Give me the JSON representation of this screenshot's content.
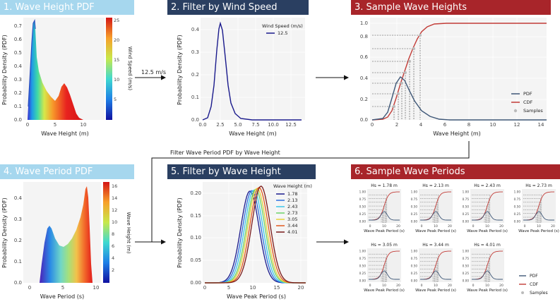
{
  "colors": {
    "light": "#a6d7ee",
    "navy": "#2a3f61",
    "red": "#a8252a",
    "pdf": "#3e5777",
    "cdf": "#c23b36"
  },
  "flow": {
    "wind_label": "12.5 m/s",
    "period_filter_label": "Filter Wave Period PDF by Wave Height"
  },
  "panels": {
    "p1": {
      "title": "1. Wave Height PDF",
      "xlabel": "Wave Height (m)",
      "ylabel": "Probability Density (PDF)",
      "xticks": [
        "0",
        "5",
        "10"
      ],
      "yticks": [
        "0.0",
        "0.1",
        "0.2",
        "0.3",
        "0.4",
        "0.5",
        "0.6",
        "0.7"
      ],
      "colorbar_label": "Wind Speed (m/s)",
      "colorbar_ticks": [
        "5",
        "10",
        "15",
        "20",
        "25"
      ]
    },
    "p2": {
      "title": "2. Filter by Wind Speed",
      "xlabel": "Wave Height (m)",
      "ylabel": "Probability Density (PDF)",
      "xticks": [
        "0.0",
        "2.5",
        "5.0",
        "7.5",
        "10.0",
        "12.5"
      ],
      "yticks": [
        "0.0",
        "0.1",
        "0.2",
        "0.3",
        "0.4"
      ],
      "legend_title": "Wind Speed (m/s)",
      "legend_item": "12.5"
    },
    "p3": {
      "title": "3. Sample Wave Heights",
      "xlabel": "Wave Height (m)",
      "xticks": [
        "0",
        "2",
        "4",
        "6",
        "8",
        "10",
        "12",
        "14"
      ],
      "yticks": [
        "0.0",
        "0.2",
        "0.4",
        "0.6",
        "0.8",
        "1.0"
      ],
      "legend": [
        "PDF",
        "CDF",
        "Samples"
      ]
    },
    "p4": {
      "title": "4. Wave Period PDF",
      "xlabel": "Wave Period (s)",
      "ylabel": "Probability Density (PDF)",
      "xticks": [
        "0",
        "5",
        "10"
      ],
      "yticks": [
        "0.0",
        "0.1",
        "0.2",
        "0.3",
        "0.4"
      ],
      "colorbar_label": "Wave Height (m)",
      "colorbar_ticks": [
        "2",
        "4",
        "6",
        "8",
        "10",
        "12",
        "14",
        "16"
      ]
    },
    "p5": {
      "title": "5. Filter by Wave Height",
      "xlabel": "Wave Peak Period (s)",
      "ylabel": "Probability Density (PDF)",
      "xticks": [
        "0",
        "5",
        "10",
        "15",
        "20"
      ],
      "yticks": [
        "0.00",
        "0.05",
        "0.10",
        "0.15",
        "0.20"
      ],
      "legend_title": "Wave Height (m)",
      "legend_items": [
        "1.78",
        "2.13",
        "2.43",
        "2.73",
        "3.05",
        "3.44",
        "4.01"
      ]
    },
    "p6": {
      "title": "6. Sample Wave Periods",
      "subplot_titles": [
        "Hs = 1.78 m",
        "Hs = 2.13 m",
        "Hs = 2.43 m",
        "Hs = 2.73 m",
        "Hs = 3.05 m",
        "Hs = 3.44 m",
        "Hs = 4.01 m"
      ],
      "subplot_xlabel": "Wave Peak Period (s)",
      "subplot_xticks": [
        "0",
        "10",
        "20"
      ],
      "subplot_yticks": [
        "0.00",
        "0.25",
        "0.50",
        "0.75",
        "1.00"
      ],
      "legend": [
        "PDF",
        "CDF",
        "Samples"
      ]
    }
  },
  "chart_data": [
    {
      "type": "area",
      "id": "wave_height_pdf",
      "title": "1. Wave Height PDF",
      "xlabel": "Wave Height (m)",
      "ylabel": "Probability Density (PDF)",
      "xlim": [
        0,
        14
      ],
      "ylim": [
        0,
        0.75
      ],
      "colorbar": {
        "label": "Wind Speed (m/s)",
        "range": [
          0,
          25
        ]
      },
      "series": [
        {
          "x": 1.2,
          "peak": 0.73
        },
        {
          "x": 6.3,
          "peak": 0.27
        }
      ]
    },
    {
      "type": "line",
      "id": "filter_by_wind_speed",
      "title": "2. Filter by Wind Speed",
      "xlabel": "Wave Height (m)",
      "ylabel": "Probability Density (PDF)",
      "xlim": [
        0,
        14
      ],
      "ylim": [
        0,
        0.45
      ],
      "series": [
        {
          "name": "12.5",
          "mode_x": 2.5,
          "peak": 0.43
        }
      ]
    },
    {
      "type": "line",
      "id": "sample_wave_heights",
      "title": "3. Sample Wave Heights",
      "xlabel": "Wave Height (m)",
      "xlim": [
        0,
        14
      ],
      "ylim": [
        0,
        1
      ],
      "series": [
        {
          "name": "PDF",
          "mode_x": 2.5,
          "peak": 0.42
        },
        {
          "name": "CDF"
        }
      ],
      "samples": [
        1.78,
        2.13,
        2.43,
        2.73,
        3.05,
        3.44,
        4.01
      ]
    },
    {
      "type": "area",
      "id": "wave_period_pdf",
      "title": "4. Wave Period PDF",
      "xlabel": "Wave Period (s)",
      "ylabel": "Probability Density (PDF)",
      "xlim": [
        0,
        14
      ],
      "ylim": [
        0,
        0.45
      ],
      "colorbar": {
        "label": "Wave Height (m)",
        "range": [
          0,
          16
        ]
      },
      "series": [
        {
          "x": 2.9,
          "peak": 0.27
        },
        {
          "x": 8.5,
          "peak": 0.44
        }
      ]
    },
    {
      "type": "line",
      "id": "filter_by_wave_height",
      "title": "5. Filter by Wave Height",
      "xlabel": "Wave Peak Period (s)",
      "ylabel": "Probability Density (PDF)",
      "xlim": [
        0,
        21
      ],
      "ylim": [
        0,
        0.22
      ],
      "series": [
        {
          "name": "1.78",
          "mode_x": 9.4,
          "peak": 0.205,
          "color": "#1a1a8c"
        },
        {
          "name": "2.13",
          "mode_x": 9.8,
          "peak": 0.206,
          "color": "#2d6fe0"
        },
        {
          "name": "2.43",
          "mode_x": 10.2,
          "peak": 0.207,
          "color": "#3cc7e8"
        },
        {
          "name": "2.73",
          "mode_x": 10.6,
          "peak": 0.209,
          "color": "#6cd36a"
        },
        {
          "name": "3.05",
          "mode_x": 10.9,
          "peak": 0.211,
          "color": "#e6d33a"
        },
        {
          "name": "3.44",
          "mode_x": 11.3,
          "peak": 0.213,
          "color": "#e2591f"
        },
        {
          "name": "4.01",
          "mode_x": 11.7,
          "peak": 0.216,
          "color": "#7a1a1a"
        }
      ]
    },
    {
      "type": "line",
      "id": "sample_wave_periods",
      "title": "6. Sample Wave Periods",
      "xlabel": "Wave Peak Period (s)",
      "xlim": [
        0,
        25
      ],
      "ylim": [
        0,
        1
      ],
      "subplots": [
        1.78,
        2.13,
        2.43,
        2.73,
        3.05,
        3.44,
        4.01
      ]
    }
  ]
}
